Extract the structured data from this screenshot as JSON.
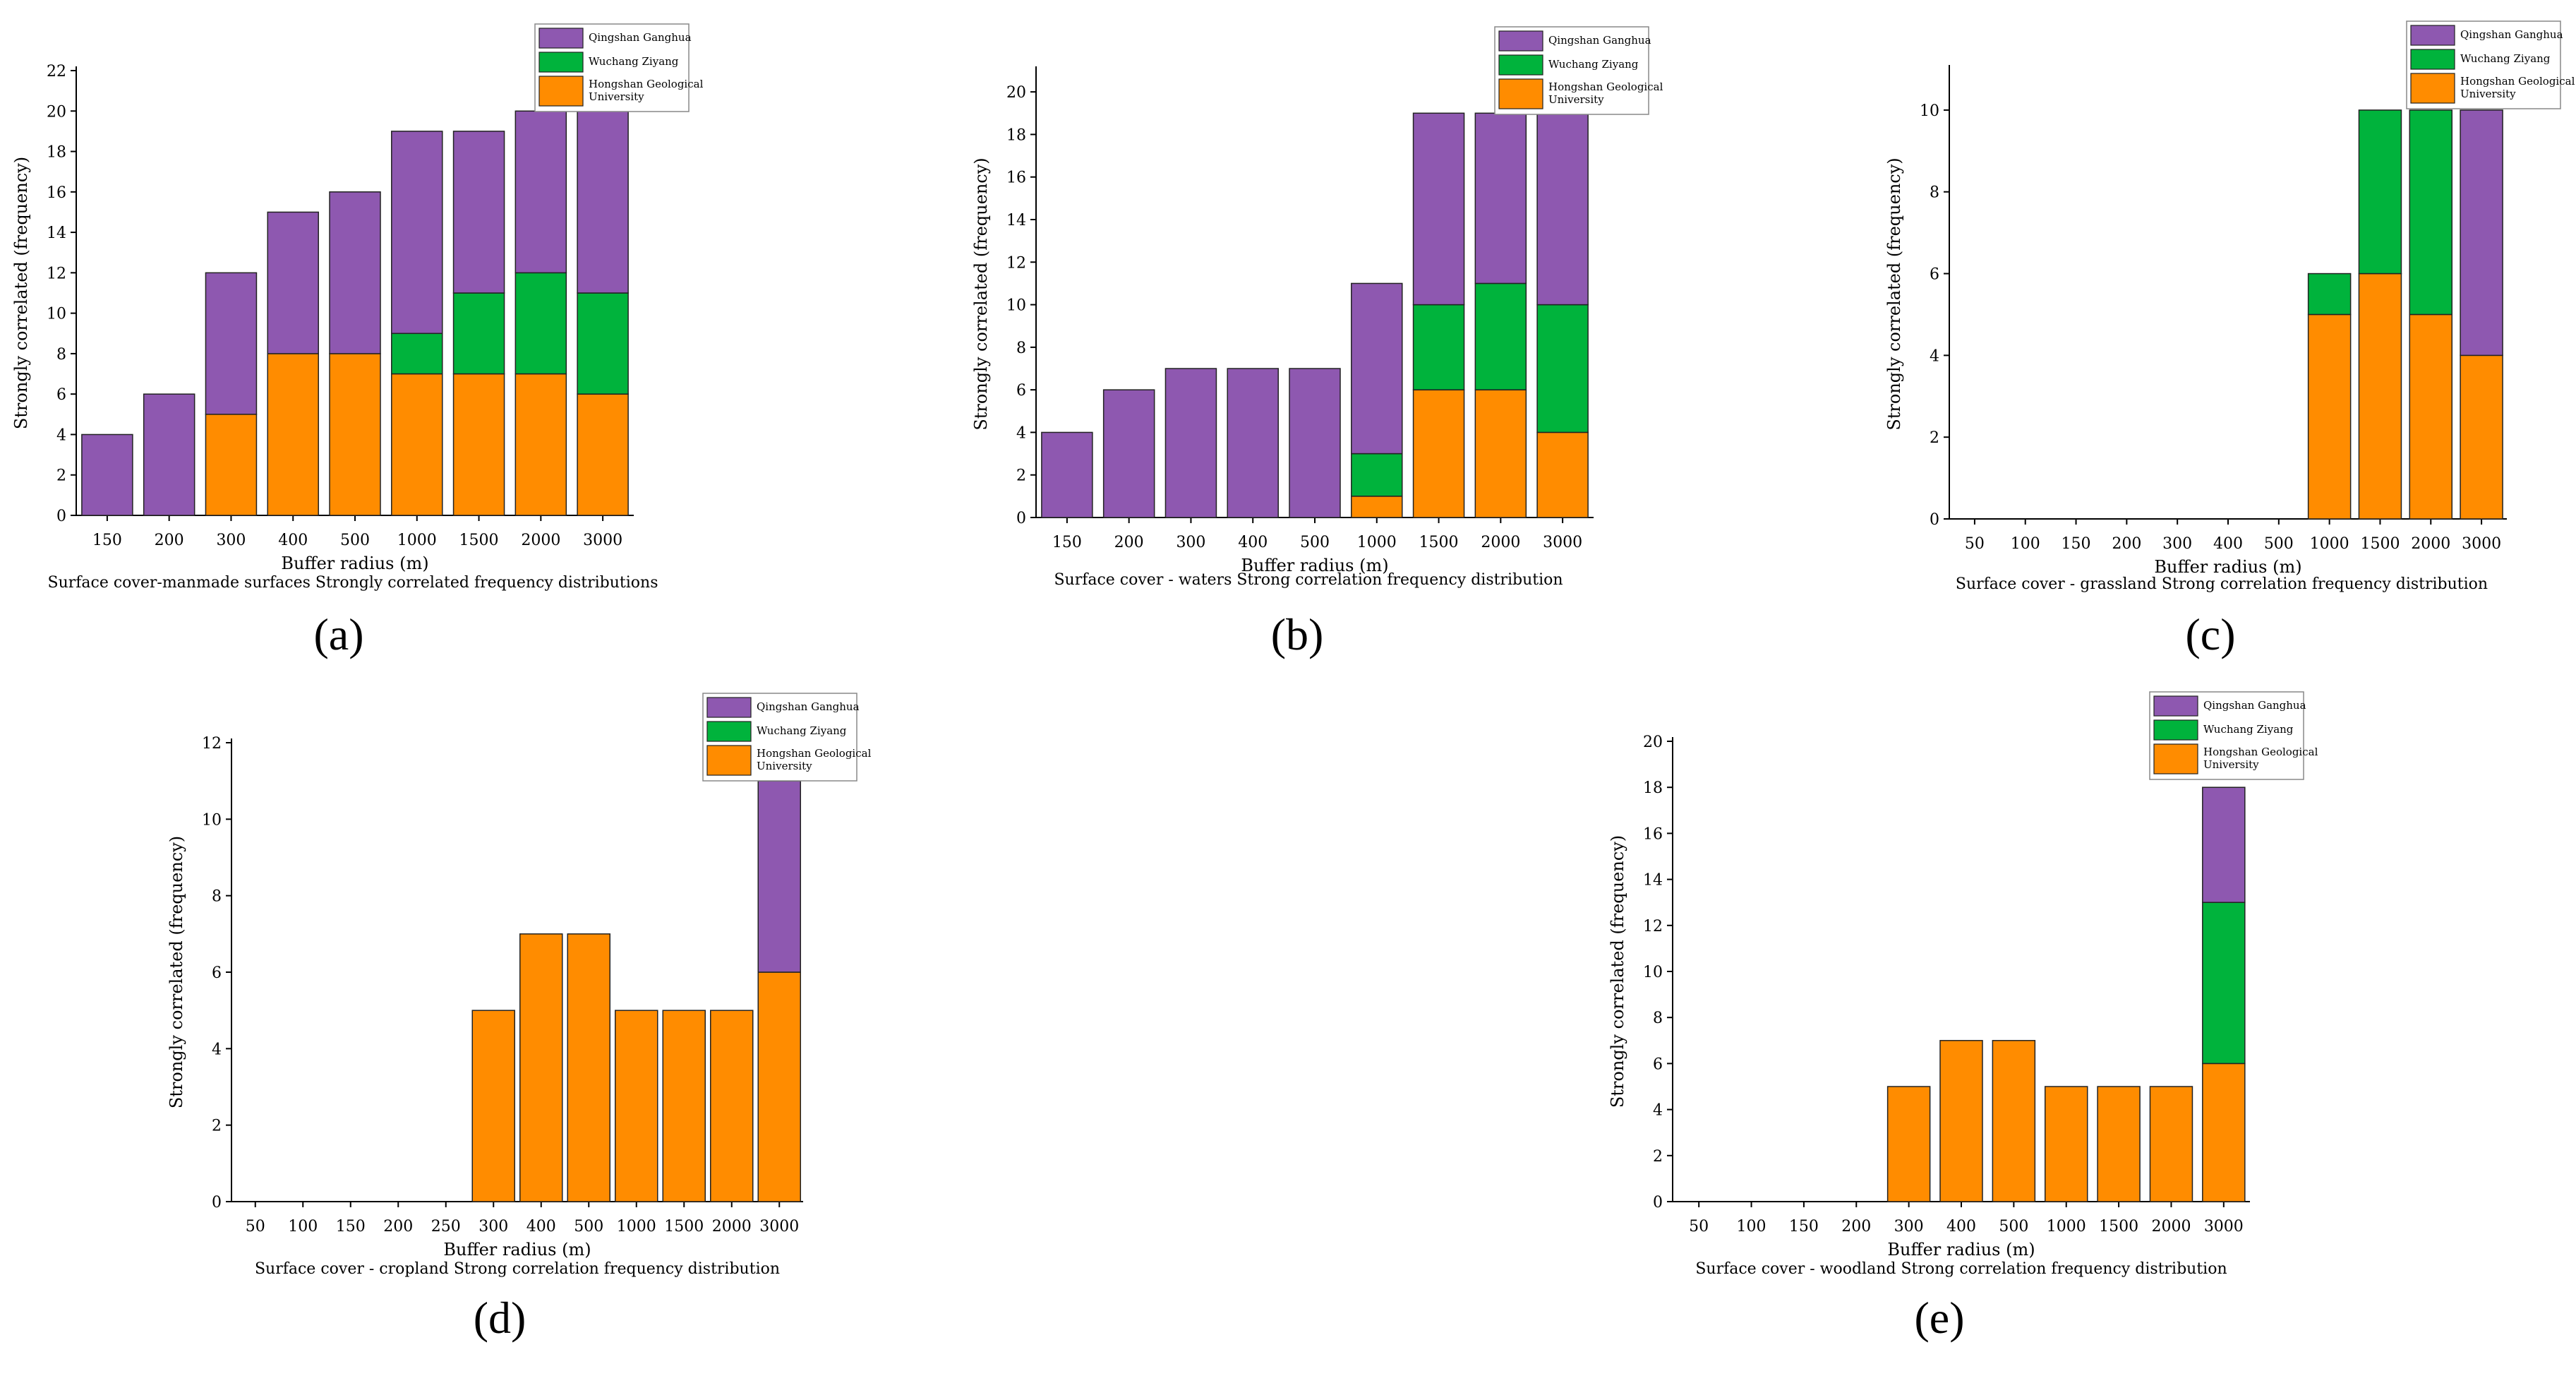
{
  "figure": {
    "panels": [
      {
        "label": "(a)",
        "chart_data": {
          "type": "bar",
          "stacked": true,
          "title": "",
          "caption": "Surface cover-manmade surfaces Strongly correlated frequency distributions",
          "xlabel": "Buffer radius (m)",
          "ylabel": "Strongly correlated (frequency)",
          "ylim": [
            0,
            22
          ],
          "yticks": [
            0,
            2,
            4,
            6,
            8,
            10,
            12,
            14,
            16,
            18,
            20,
            22
          ],
          "categories": [
            "150",
            "200",
            "300",
            "400",
            "500",
            "1000",
            "1500",
            "2000",
            "3000"
          ],
          "series": [
            {
              "name": "Hongshan Geological University",
              "color": "#ff8c00",
              "values": [
                0,
                0,
                5,
                8,
                8,
                7,
                7,
                7,
                6
              ]
            },
            {
              "name": "Wuchang Ziyang",
              "color": "#00b33c",
              "values": [
                0,
                0,
                0,
                0,
                0,
                2,
                4,
                5,
                5
              ]
            },
            {
              "name": "Qingshan Ganghua",
              "color": "#8e58b0",
              "values": [
                4,
                6,
                7,
                7,
                8,
                10,
                8,
                8,
                9
              ]
            }
          ],
          "legend": [
            "Qingshan Ganghua",
            "Wuchang Ziyang",
            "Hongshan Geological University"
          ],
          "legend_position": "top-right"
        }
      },
      {
        "label": "(b)",
        "chart_data": {
          "type": "bar",
          "stacked": true,
          "title": "",
          "caption": "Surface cover - waters Strong correlation frequency distribution",
          "xlabel": "Buffer radius (m)",
          "ylabel": "Strongly correlated (frequency)",
          "ylim": [
            0,
            21
          ],
          "yticks": [
            0,
            2,
            4,
            6,
            8,
            10,
            12,
            14,
            16,
            18,
            20
          ],
          "categories": [
            "150",
            "200",
            "300",
            "400",
            "500",
            "1000",
            "1500",
            "2000",
            "3000"
          ],
          "series": [
            {
              "name": "Hongshan Geological University",
              "color": "#ff8c00",
              "values": [
                0,
                0,
                0,
                0,
                0,
                1,
                6,
                6,
                4
              ]
            },
            {
              "name": "Wuchang Ziyang",
              "color": "#00b33c",
              "values": [
                0,
                0,
                0,
                0,
                0,
                2,
                4,
                5,
                6
              ]
            },
            {
              "name": "Qingshan Ganghua",
              "color": "#8e58b0",
              "values": [
                4,
                6,
                7,
                7,
                7,
                8,
                9,
                8,
                9
              ]
            }
          ],
          "legend": [
            "Qingshan Ganghua",
            "Wuchang Ziyang",
            "Hongshan Geological University"
          ],
          "legend_position": "top-right"
        }
      },
      {
        "label": "(c)",
        "chart_data": {
          "type": "bar",
          "stacked": true,
          "title": "",
          "caption": "Surface cover - grassland Strong correlation frequency distribution",
          "xlabel": "Buffer radius (m)",
          "ylabel": "Strongly correlated (frequency)",
          "ylim": [
            0,
            11
          ],
          "yticks": [
            0,
            2,
            4,
            6,
            8,
            10
          ],
          "categories": [
            "50",
            "100",
            "150",
            "200",
            "300",
            "400",
            "500",
            "1000",
            "1500",
            "2000",
            "3000"
          ],
          "series": [
            {
              "name": "Hongshan Geological University",
              "color": "#ff8c00",
              "values": [
                0,
                0,
                0,
                0,
                0,
                0,
                0,
                5,
                6,
                5,
                4
              ]
            },
            {
              "name": "Wuchang Ziyang",
              "color": "#00b33c",
              "values": [
                0,
                0,
                0,
                0,
                0,
                0,
                0,
                1,
                4,
                5,
                0
              ]
            },
            {
              "name": "Qingshan Ganghua",
              "color": "#8e58b0",
              "values": [
                0,
                0,
                0,
                0,
                0,
                0,
                0,
                0,
                0,
                0,
                6
              ]
            }
          ],
          "legend": [
            "Qingshan Ganghua",
            "Wuchang Ziyang",
            "Hongshan Geological University"
          ],
          "legend_position": "top-right"
        }
      },
      {
        "label": "(d)",
        "chart_data": {
          "type": "bar",
          "stacked": true,
          "title": "",
          "caption": "Surface cover - cropland Strong correlation frequency distribution",
          "xlabel": "Buffer radius (m)",
          "ylabel": "Strongly correlated (frequency)",
          "ylim": [
            0,
            12
          ],
          "yticks": [
            0,
            2,
            4,
            6,
            8,
            10,
            12
          ],
          "categories": [
            "50",
            "100",
            "150",
            "200",
            "250",
            "300",
            "400",
            "500",
            "1000",
            "1500",
            "2000",
            "3000"
          ],
          "series": [
            {
              "name": "Hongshan Geological University",
              "color": "#ff8c00",
              "values": [
                0,
                0,
                0,
                0,
                0,
                5,
                7,
                7,
                5,
                5,
                5,
                6
              ]
            },
            {
              "name": "Wuchang Ziyang",
              "color": "#00b33c",
              "values": [
                0,
                0,
                0,
                0,
                0,
                0,
                0,
                0,
                0,
                0,
                0,
                0
              ]
            },
            {
              "name": "Qingshan Ganghua",
              "color": "#8e58b0",
              "values": [
                0,
                0,
                0,
                0,
                0,
                0,
                0,
                0,
                0,
                0,
                0,
                5
              ]
            }
          ],
          "legend": [
            "Qingshan Ganghua",
            "Wuchang Ziyang",
            "Hongshan Geological University"
          ],
          "legend_position": "top-right"
        }
      },
      {
        "label": "(e)",
        "chart_data": {
          "type": "bar",
          "stacked": true,
          "title": "",
          "caption": "Surface cover - woodland Strong correlation frequency distribution",
          "xlabel": "Buffer radius (m)",
          "ylabel": "Strongly correlated (frequency)",
          "ylim": [
            0,
            20
          ],
          "yticks": [
            0,
            2,
            4,
            6,
            8,
            10,
            12,
            14,
            16,
            18,
            20
          ],
          "categories": [
            "50",
            "100",
            "150",
            "200",
            "300",
            "400",
            "500",
            "1000",
            "1500",
            "2000",
            "3000"
          ],
          "series": [
            {
              "name": "Hongshan Geological University",
              "color": "#ff8c00",
              "values": [
                0,
                0,
                0,
                0,
                5,
                7,
                7,
                5,
                5,
                5,
                6
              ]
            },
            {
              "name": "Wuchang Ziyang",
              "color": "#00b33c",
              "values": [
                0,
                0,
                0,
                0,
                0,
                0,
                0,
                0,
                0,
                0,
                7
              ]
            },
            {
              "name": "Qingshan Ganghua",
              "color": "#8e58b0",
              "values": [
                0,
                0,
                0,
                0,
                0,
                0,
                0,
                0,
                0,
                0,
                5
              ]
            }
          ],
          "legend": [
            "Qingshan Ganghua",
            "Wuchang Ziyang",
            "Hongshan Geological University"
          ],
          "legend_position": "top-right"
        }
      }
    ]
  }
}
